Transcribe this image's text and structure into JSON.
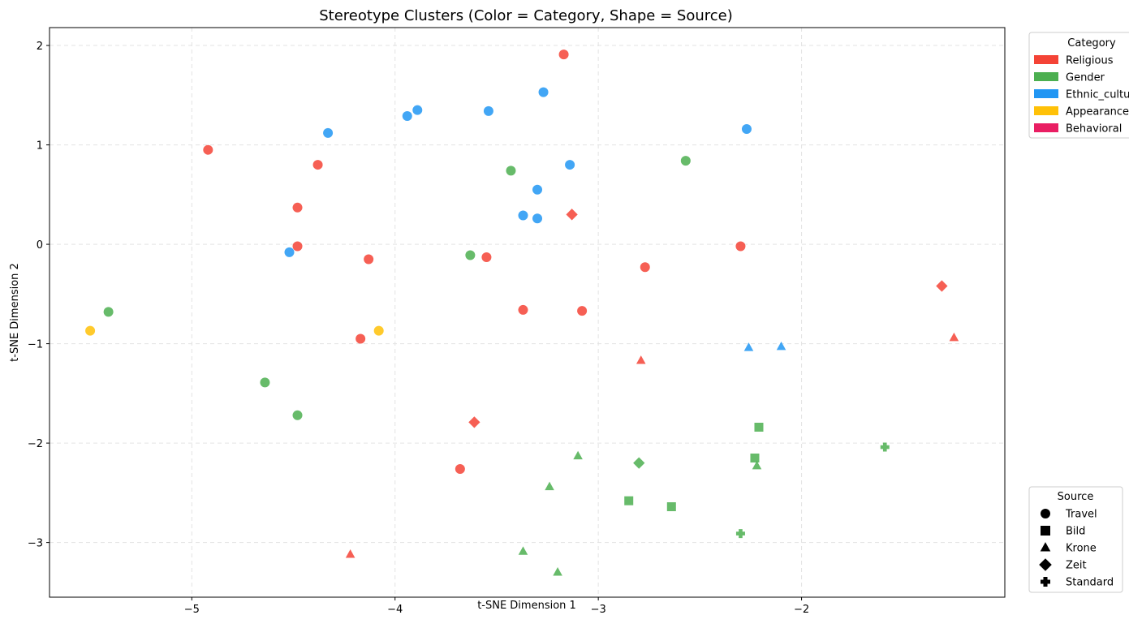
{
  "chart_data": {
    "type": "scatter",
    "title": "Stereotype Clusters (Color = Category, Shape = Source)",
    "xlabel": "t-SNE Dimension 1",
    "ylabel": "t-SNE Dimension 2",
    "xlim": [
      -5.7,
      -1.0
    ],
    "ylim": [
      -3.55,
      2.18
    ],
    "xticks": [
      -5,
      -4,
      -3,
      -2
    ],
    "yticks": [
      -3,
      -2,
      -1,
      0,
      1,
      2
    ],
    "xtick_labels": [
      "−5",
      "−4",
      "−3",
      "−2"
    ],
    "ytick_labels": [
      "−3",
      "−2",
      "−1",
      "0",
      "1",
      "2"
    ],
    "grid": true,
    "category_legend": {
      "title": "Category",
      "placement": "top-right outside",
      "entries": [
        {
          "name": "Religious",
          "color": "#F44336"
        },
        {
          "name": "Gender",
          "color": "#4CAF50"
        },
        {
          "name": "Ethnic_cultural",
          "color": "#2196F3"
        },
        {
          "name": "Appearance",
          "color": "#FFC107"
        },
        {
          "name": "Behavioral",
          "color": "#E91E63"
        }
      ]
    },
    "source_legend": {
      "title": "Source",
      "placement": "bottom-right outside",
      "entries": [
        {
          "name": "Travel",
          "marker": "circle"
        },
        {
          "name": "Bild",
          "marker": "square"
        },
        {
          "name": "Krone",
          "marker": "triangle"
        },
        {
          "name": "Zeit",
          "marker": "diamond"
        },
        {
          "name": "Standard",
          "marker": "plus"
        }
      ]
    },
    "points": [
      {
        "x": -3.17,
        "y": 1.91,
        "category": "Religious",
        "source": "Travel"
      },
      {
        "x": -4.92,
        "y": 0.95,
        "category": "Religious",
        "source": "Travel"
      },
      {
        "x": -4.38,
        "y": 0.8,
        "category": "Religious",
        "source": "Travel"
      },
      {
        "x": -4.48,
        "y": 0.37,
        "category": "Religious",
        "source": "Travel"
      },
      {
        "x": -4.48,
        "y": -0.02,
        "category": "Religious",
        "source": "Travel"
      },
      {
        "x": -4.13,
        "y": -0.15,
        "category": "Religious",
        "source": "Travel"
      },
      {
        "x": -3.55,
        "y": -0.13,
        "category": "Religious",
        "source": "Travel"
      },
      {
        "x": -2.77,
        "y": -0.23,
        "category": "Religious",
        "source": "Travel"
      },
      {
        "x": -2.3,
        "y": -0.02,
        "category": "Religious",
        "source": "Travel"
      },
      {
        "x": -3.37,
        "y": -0.66,
        "category": "Religious",
        "source": "Travel"
      },
      {
        "x": -3.08,
        "y": -0.67,
        "category": "Religious",
        "source": "Travel"
      },
      {
        "x": -4.17,
        "y": -0.95,
        "category": "Religious",
        "source": "Travel"
      },
      {
        "x": -3.68,
        "y": -2.26,
        "category": "Religious",
        "source": "Travel"
      },
      {
        "x": -3.13,
        "y": 0.3,
        "category": "Religious",
        "source": "Zeit"
      },
      {
        "x": -1.31,
        "y": -0.42,
        "category": "Religious",
        "source": "Zeit"
      },
      {
        "x": -3.61,
        "y": -1.79,
        "category": "Religious",
        "source": "Zeit"
      },
      {
        "x": -2.79,
        "y": -1.17,
        "category": "Religious",
        "source": "Krone"
      },
      {
        "x": -1.25,
        "y": -0.94,
        "category": "Religious",
        "source": "Krone"
      },
      {
        "x": -4.22,
        "y": -3.12,
        "category": "Religious",
        "source": "Krone"
      },
      {
        "x": -3.43,
        "y": 0.74,
        "category": "Gender",
        "source": "Travel"
      },
      {
        "x": -2.57,
        "y": 0.84,
        "category": "Gender",
        "source": "Travel"
      },
      {
        "x": -3.63,
        "y": -0.11,
        "category": "Gender",
        "source": "Travel"
      },
      {
        "x": -5.41,
        "y": -0.68,
        "category": "Gender",
        "source": "Travel"
      },
      {
        "x": -4.64,
        "y": -1.39,
        "category": "Gender",
        "source": "Travel"
      },
      {
        "x": -4.48,
        "y": -1.72,
        "category": "Gender",
        "source": "Travel"
      },
      {
        "x": -2.21,
        "y": -1.84,
        "category": "Gender",
        "source": "Bild"
      },
      {
        "x": -2.23,
        "y": -2.15,
        "category": "Gender",
        "source": "Bild"
      },
      {
        "x": -2.85,
        "y": -2.58,
        "category": "Gender",
        "source": "Bild"
      },
      {
        "x": -2.64,
        "y": -2.64,
        "category": "Gender",
        "source": "Bild"
      },
      {
        "x": -3.1,
        "y": -2.13,
        "category": "Gender",
        "source": "Krone"
      },
      {
        "x": -3.24,
        "y": -2.44,
        "category": "Gender",
        "source": "Krone"
      },
      {
        "x": -2.22,
        "y": -2.23,
        "category": "Gender",
        "source": "Krone"
      },
      {
        "x": -3.37,
        "y": -3.09,
        "category": "Gender",
        "source": "Krone"
      },
      {
        "x": -3.2,
        "y": -3.3,
        "category": "Gender",
        "source": "Krone"
      },
      {
        "x": -2.8,
        "y": -2.2,
        "category": "Gender",
        "source": "Zeit"
      },
      {
        "x": -1.59,
        "y": -2.04,
        "category": "Gender",
        "source": "Standard"
      },
      {
        "x": -2.3,
        "y": -2.91,
        "category": "Gender",
        "source": "Standard"
      },
      {
        "x": -3.27,
        "y": 1.53,
        "category": "Ethnic_cultural",
        "source": "Travel"
      },
      {
        "x": -3.89,
        "y": 1.35,
        "category": "Ethnic_cultural",
        "source": "Travel"
      },
      {
        "x": -3.94,
        "y": 1.29,
        "category": "Ethnic_cultural",
        "source": "Travel"
      },
      {
        "x": -3.54,
        "y": 1.34,
        "category": "Ethnic_cultural",
        "source": "Travel"
      },
      {
        "x": -4.33,
        "y": 1.12,
        "category": "Ethnic_cultural",
        "source": "Travel"
      },
      {
        "x": -2.27,
        "y": 1.16,
        "category": "Ethnic_cultural",
        "source": "Travel"
      },
      {
        "x": -3.14,
        "y": 0.8,
        "category": "Ethnic_cultural",
        "source": "Travel"
      },
      {
        "x": -3.3,
        "y": 0.55,
        "category": "Ethnic_cultural",
        "source": "Travel"
      },
      {
        "x": -3.37,
        "y": 0.29,
        "category": "Ethnic_cultural",
        "source": "Travel"
      },
      {
        "x": -3.3,
        "y": 0.26,
        "category": "Ethnic_cultural",
        "source": "Travel"
      },
      {
        "x": -4.52,
        "y": -0.08,
        "category": "Ethnic_cultural",
        "source": "Travel"
      },
      {
        "x": -2.26,
        "y": -1.04,
        "category": "Ethnic_cultural",
        "source": "Krone"
      },
      {
        "x": -2.1,
        "y": -1.03,
        "category": "Ethnic_cultural",
        "source": "Krone"
      },
      {
        "x": -5.5,
        "y": -0.87,
        "category": "Appearance",
        "source": "Travel"
      },
      {
        "x": -4.08,
        "y": -0.87,
        "category": "Appearance",
        "source": "Travel"
      }
    ]
  }
}
